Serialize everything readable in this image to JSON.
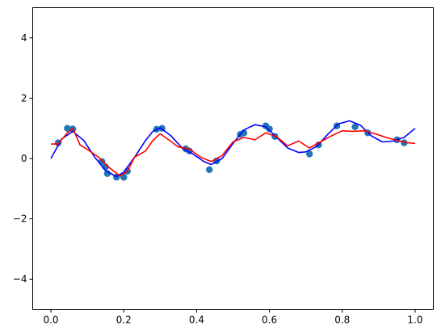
{
  "chart_data": {
    "type": "scatter",
    "title": "",
    "xlabel": "",
    "ylabel": "",
    "xlim": [
      -0.05,
      1.05
    ],
    "ylim": [
      -5,
      5
    ],
    "grid": false,
    "legend": "none",
    "x_ticks": [
      0.0,
      0.2,
      0.4,
      0.6,
      0.8,
      1.0
    ],
    "x_tick_labels": [
      "0.0",
      "0.2",
      "0.4",
      "0.6",
      "0.8",
      "1.0"
    ],
    "y_ticks": [
      -4,
      -2,
      0,
      2,
      4
    ],
    "y_tick_labels": [
      "−4",
      "−2",
      "0",
      "2",
      "4"
    ],
    "colors": {
      "points": "#1f77b4",
      "blue_line": "#0000ff",
      "red_line": "#ff0000"
    },
    "points": {
      "x": [
        0.02,
        0.045,
        0.06,
        0.14,
        0.15,
        0.155,
        0.18,
        0.2,
        0.21,
        0.29,
        0.305,
        0.37,
        0.38,
        0.435,
        0.455,
        0.52,
        0.53,
        0.59,
        0.6,
        0.615,
        0.71,
        0.735,
        0.785,
        0.835,
        0.87,
        0.95,
        0.97
      ],
      "y": [
        0.52,
        1.0,
        0.98,
        -0.1,
        -0.28,
        -0.5,
        -0.62,
        -0.62,
        -0.42,
        0.97,
        1.0,
        0.32,
        0.25,
        -0.37,
        -0.08,
        0.8,
        0.85,
        1.08,
        0.98,
        0.73,
        0.15,
        0.45,
        1.08,
        1.05,
        0.85,
        0.62,
        0.52
      ]
    },
    "series": [
      {
        "color": "#0000ff",
        "x": [
          0.0,
          0.03,
          0.06,
          0.09,
          0.12,
          0.15,
          0.18,
          0.2,
          0.23,
          0.26,
          0.28,
          0.3,
          0.33,
          0.36,
          0.39,
          0.42,
          0.44,
          0.47,
          0.5,
          0.53,
          0.56,
          0.59,
          0.62,
          0.65,
          0.68,
          0.7,
          0.73,
          0.76,
          0.79,
          0.82,
          0.85,
          0.88,
          0.91,
          0.94,
          0.97,
          1.0
        ],
        "y": [
          0.0,
          0.65,
          0.9,
          0.6,
          0.05,
          -0.4,
          -0.6,
          -0.45,
          0.05,
          0.6,
          0.9,
          1.02,
          0.75,
          0.35,
          0.15,
          -0.1,
          -0.2,
          0.0,
          0.5,
          0.95,
          1.12,
          1.05,
          0.7,
          0.35,
          0.2,
          0.22,
          0.4,
          0.8,
          1.15,
          1.25,
          1.1,
          0.75,
          0.55,
          0.58,
          0.7,
          1.0
        ]
      },
      {
        "color": "#ff0000",
        "x": [
          0.0,
          0.02,
          0.045,
          0.06,
          0.08,
          0.1,
          0.13,
          0.16,
          0.19,
          0.21,
          0.23,
          0.26,
          0.28,
          0.3,
          0.32,
          0.35,
          0.38,
          0.41,
          0.44,
          0.47,
          0.5,
          0.53,
          0.56,
          0.59,
          0.62,
          0.65,
          0.68,
          0.71,
          0.74,
          0.77,
          0.8,
          0.83,
          0.86,
          0.89,
          0.92,
          0.95,
          0.98,
          1.0
        ],
        "y": [
          0.48,
          0.48,
          0.85,
          1.0,
          0.45,
          0.3,
          0.05,
          -0.3,
          -0.58,
          -0.42,
          0.05,
          0.25,
          0.6,
          0.82,
          0.65,
          0.38,
          0.32,
          0.05,
          -0.1,
          0.1,
          0.55,
          0.7,
          0.62,
          0.85,
          0.72,
          0.42,
          0.58,
          0.35,
          0.55,
          0.75,
          0.92,
          0.9,
          0.92,
          0.82,
          0.7,
          0.6,
          0.52,
          0.5
        ]
      }
    ]
  }
}
